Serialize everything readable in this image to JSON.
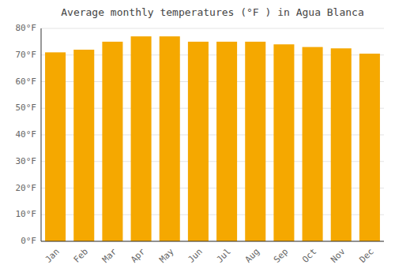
{
  "chart_data": {
    "type": "bar",
    "title": "Average monthly temperatures (°F ) in Agua Blanca",
    "categories": [
      "Jan",
      "Feb",
      "Mar",
      "Apr",
      "May",
      "Jun",
      "Jul",
      "Aug",
      "Sep",
      "Oct",
      "Nov",
      "Dec"
    ],
    "values": [
      71,
      72,
      75,
      77,
      77,
      75,
      75,
      75,
      74,
      73,
      72.5,
      70.5
    ],
    "color": "#F5A800",
    "ylim": [
      0,
      80
    ],
    "yticks": [
      {
        "value": 0,
        "label": "0°F"
      },
      {
        "value": 10,
        "label": "10°F"
      },
      {
        "value": 20,
        "label": "20°F"
      },
      {
        "value": 30,
        "label": "30°F"
      },
      {
        "value": 40,
        "label": "40°F"
      },
      {
        "value": 50,
        "label": "50°F"
      },
      {
        "value": 60,
        "label": "60°F"
      },
      {
        "value": 70,
        "label": "70°F"
      },
      {
        "value": 80,
        "label": "80°F"
      }
    ],
    "grid": true
  }
}
